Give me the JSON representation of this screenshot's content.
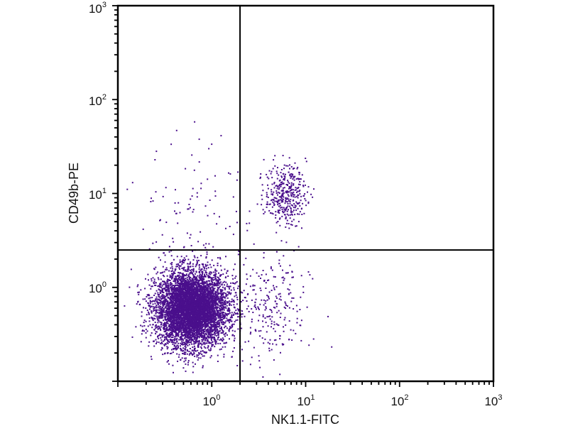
{
  "chart_data": {
    "type": "scatter",
    "title": "",
    "xlabel": "NK1.1-FITC",
    "ylabel": "CD49b-PE",
    "xscale": "log",
    "yscale": "log",
    "xlim": [
      0.1,
      1000
    ],
    "ylim": [
      0.1,
      1000
    ],
    "x_ticks": [
      {
        "base": "10",
        "exp": "0",
        "value": 1
      },
      {
        "base": "10",
        "exp": "1",
        "value": 10
      },
      {
        "base": "10",
        "exp": "2",
        "value": 100
      },
      {
        "base": "10",
        "exp": "3",
        "value": 1000
      }
    ],
    "y_ticks": [
      {
        "base": "10",
        "exp": "0",
        "value": 1
      },
      {
        "base": "10",
        "exp": "1",
        "value": 10
      },
      {
        "base": "10",
        "exp": "2",
        "value": 100
      },
      {
        "base": "10",
        "exp": "3",
        "value": 1000
      }
    ],
    "quadrant_gates": {
      "x": 2.0,
      "y": 2.5
    },
    "grid": false,
    "legend": "none",
    "point_color": "#4a0f8c",
    "populations": [
      {
        "description": "CD49b- NK1.1- main population",
        "center": [
          0.6,
          0.6
        ],
        "log_sd": [
          0.19,
          0.2
        ],
        "count": 6000
      },
      {
        "description": "CD49b+ NK1.1+ NK cells",
        "center": [
          6.0,
          10.0
        ],
        "log_sd": [
          0.11,
          0.16
        ],
        "count": 380
      },
      {
        "description": "CD49b+ NK1.1- scattered",
        "center": [
          0.7,
          6.0
        ],
        "log_sd": [
          0.3,
          0.4
        ],
        "count": 110
      },
      {
        "description": "CD49b- NK1.1+ scattered",
        "center": [
          4.0,
          0.6
        ],
        "log_sd": [
          0.22,
          0.3
        ],
        "count": 260
      }
    ]
  }
}
